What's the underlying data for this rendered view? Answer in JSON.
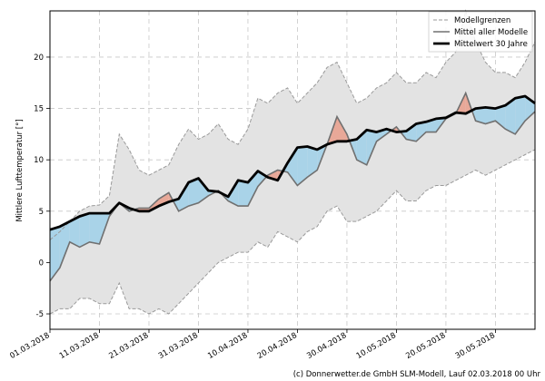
{
  "chart_data": {
    "type": "line",
    "ylabel": "Mittlere Lufttemperatur [°]",
    "ylim": [
      -6.5,
      24.5
    ],
    "y_ticks": [
      -5,
      0,
      5,
      10,
      15,
      20
    ],
    "x_tick_labels": [
      "01.03.2018",
      "11.03.2018",
      "21.03.2018",
      "31.03.2018",
      "10.04.2018",
      "20.04.2018",
      "30.04.2018",
      "10.05.2018",
      "20.05.2018",
      "30.05.2018"
    ],
    "x_tick_days": [
      0,
      10,
      20,
      30,
      40,
      50,
      60,
      70,
      80,
      90
    ],
    "xlim": [
      0,
      98
    ],
    "grid": true,
    "legend_position": "top-right",
    "legend": {
      "bounds": "Modellgrenzen",
      "mean_models": "Mittel aller Modelle",
      "mean_30y": "Mittelwert 30 Jahre"
    },
    "credit": "(c) Donnerwetter.de GmbH SLM-Modell, Lauf 02.03.2018 00 Uhr",
    "colors": {
      "envelope": "#e3e3e3",
      "envelope_edge": "#9a9a9a",
      "mean_line": "#707070",
      "climate_line": "#000000",
      "warmer": "#e8a898",
      "colder": "#a9d3e8",
      "colder_light": "#d4eef8"
    },
    "series": [
      {
        "name": "Mittelwert 30 Jahre",
        "x": [
          0,
          2,
          4,
          6,
          8,
          10,
          12,
          14,
          16,
          18,
          20,
          22,
          24,
          26,
          28,
          30,
          32,
          34,
          36,
          38,
          40,
          42,
          44,
          46,
          48,
          50,
          52,
          54,
          56,
          58,
          60,
          62,
          64,
          66,
          68,
          70,
          72,
          74,
          76,
          78,
          80,
          82,
          84,
          86,
          88,
          90,
          92,
          94,
          96,
          98
        ],
        "values": [
          3.2,
          3.5,
          4.0,
          4.5,
          4.8,
          4.8,
          4.8,
          5.8,
          5.3,
          5.0,
          5.0,
          5.5,
          5.9,
          6.2,
          7.8,
          8.2,
          7.0,
          6.9,
          6.4,
          8.0,
          7.8,
          8.9,
          8.3,
          8.0,
          9.7,
          11.2,
          11.3,
          11.0,
          11.5,
          11.8,
          11.8,
          12.0,
          12.9,
          12.7,
          13.0,
          12.7,
          12.8,
          13.5,
          13.7,
          14.0,
          14.1,
          14.6,
          14.5,
          15.0,
          15.1,
          15.0,
          15.3,
          16.0,
          16.2,
          15.5
        ]
      },
      {
        "name": "Mittel aller Modelle",
        "x": [
          0,
          2,
          4,
          6,
          8,
          10,
          12,
          14,
          16,
          18,
          20,
          22,
          24,
          26,
          28,
          30,
          32,
          34,
          36,
          38,
          40,
          42,
          44,
          46,
          48,
          50,
          52,
          54,
          56,
          58,
          60,
          62,
          64,
          66,
          68,
          70,
          72,
          74,
          76,
          78,
          80,
          82,
          84,
          86,
          88,
          90,
          92,
          94,
          96,
          98
        ],
        "values": [
          -1.8,
          -0.5,
          2.0,
          1.5,
          2.0,
          1.8,
          4.5,
          5.8,
          5.0,
          5.3,
          5.3,
          6.2,
          6.8,
          5.0,
          5.5,
          5.8,
          6.5,
          7.0,
          6.0,
          5.5,
          5.5,
          7.4,
          8.5,
          9.0,
          8.8,
          7.5,
          8.3,
          9.0,
          11.5,
          14.2,
          12.5,
          10.0,
          9.5,
          11.8,
          12.5,
          13.2,
          12.0,
          11.8,
          12.7,
          12.7,
          14.0,
          14.5,
          16.5,
          13.8,
          13.5,
          13.8,
          13.0,
          12.5,
          13.8,
          14.7
        ]
      },
      {
        "name": "Modellgrenzen (oben)",
        "x": [
          0,
          2,
          4,
          6,
          8,
          10,
          12,
          14,
          16,
          18,
          20,
          22,
          24,
          26,
          28,
          30,
          32,
          34,
          36,
          38,
          40,
          42,
          44,
          46,
          48,
          50,
          52,
          54,
          56,
          58,
          60,
          62,
          64,
          66,
          68,
          70,
          72,
          74,
          76,
          78,
          80,
          82,
          84,
          86,
          88,
          90,
          92,
          94,
          96,
          98
        ],
        "values": [
          2.2,
          3.0,
          4.0,
          5.0,
          5.5,
          5.6,
          6.5,
          12.5,
          11.0,
          9.0,
          8.5,
          9.0,
          9.5,
          11.5,
          13.0,
          12.0,
          12.5,
          13.5,
          12.0,
          11.5,
          13.0,
          16.0,
          15.5,
          16.5,
          17.0,
          15.5,
          16.5,
          17.5,
          19.0,
          19.5,
          17.5,
          15.5,
          16.0,
          17.0,
          17.5,
          18.5,
          17.5,
          17.5,
          18.5,
          18.0,
          19.5,
          20.5,
          24.5,
          21.5,
          19.5,
          18.5,
          18.5,
          18.0,
          19.5,
          21.5
        ]
      },
      {
        "name": "Modellgrenzen (unten)",
        "x": [
          0,
          2,
          4,
          6,
          8,
          10,
          12,
          14,
          16,
          18,
          20,
          22,
          24,
          26,
          28,
          30,
          32,
          34,
          36,
          38,
          40,
          42,
          44,
          46,
          48,
          50,
          52,
          54,
          56,
          58,
          60,
          62,
          64,
          66,
          68,
          70,
          72,
          74,
          76,
          78,
          80,
          82,
          84,
          86,
          88,
          90,
          92,
          94,
          96,
          98
        ],
        "values": [
          -5.0,
          -4.5,
          -4.5,
          -3.5,
          -3.5,
          -4.0,
          -4.0,
          -2.0,
          -4.5,
          -4.5,
          -5.0,
          -4.5,
          -5.0,
          -4.0,
          -3.0,
          -2.0,
          -1.0,
          0.0,
          0.5,
          1.0,
          1.0,
          2.0,
          1.5,
          3.0,
          2.5,
          2.0,
          3.0,
          3.5,
          5.0,
          5.5,
          4.0,
          4.0,
          4.5,
          5.0,
          6.0,
          7.0,
          6.0,
          6.0,
          7.0,
          7.5,
          7.5,
          8.0,
          8.5,
          9.0,
          8.5,
          9.0,
          9.5,
          10.0,
          10.5,
          11.0
        ]
      }
    ]
  }
}
